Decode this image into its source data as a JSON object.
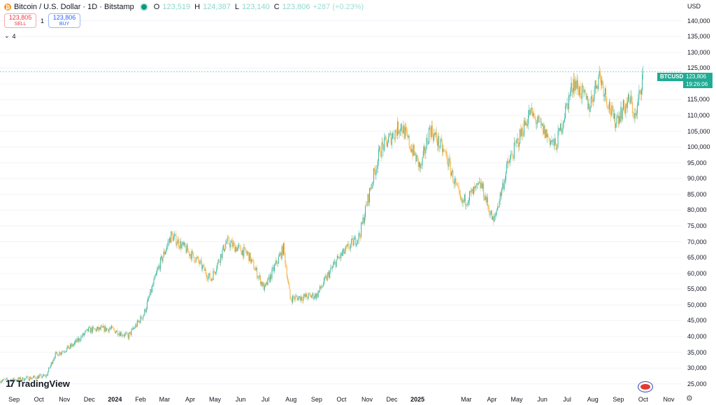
{
  "header": {
    "symbol_title": "Bitcoin / U.S. Dollar · 1D · Bitstamp",
    "open_label": "O",
    "open_value": "123,519",
    "high_label": "H",
    "high_value": "124,387",
    "low_label": "L",
    "low_value": "123,140",
    "close_label": "C",
    "close_value": "123,806",
    "change_value": "+287 (+0.23%)",
    "coin_icon": "bitcoin-icon",
    "status_icon": "market-open-dot-icon"
  },
  "trade": {
    "sell_price": "123,805",
    "sell_label": "SELL",
    "quantity": "1",
    "buy_price": "123,806",
    "buy_label": "BUY"
  },
  "indicators": {
    "collapse_icon": "chevron-down-icon",
    "count": "4"
  },
  "price_axis": {
    "currency": "USD",
    "ticks": [
      "140,000",
      "135,000",
      "130,000",
      "125,000",
      "120,000",
      "115,000",
      "110,000",
      "105,000",
      "100,000",
      "95,000",
      "90,000",
      "85,000",
      "80,000",
      "75,000",
      "70,000",
      "65,000",
      "60,000",
      "55,000",
      "50,000",
      "45,000",
      "40,000",
      "35,000",
      "30,000",
      "25,000"
    ],
    "symbol_tag": "BTCUSD",
    "last_price": "123,806",
    "countdown": "19:26:06"
  },
  "time_axis": {
    "labels": [
      "Sep",
      "Oct",
      "Nov",
      "Dec",
      "2024",
      "Feb",
      "Mar",
      "Apr",
      "May",
      "Jun",
      "Jul",
      "Aug",
      "Sep",
      "Oct",
      "Nov",
      "Dec",
      "2025",
      "Mar",
      "Apr",
      "May",
      "Jun",
      "Jul",
      "Aug",
      "Sep",
      "Oct",
      "Nov"
    ]
  },
  "branding": {
    "logo_text": "TradingView",
    "logo_icon": "tradingview-logo-icon"
  },
  "colors": {
    "up": "#22ab94",
    "down": "#f7a525",
    "accent": "#22ab94",
    "grid": "#f0f3fa"
  },
  "chart_data": {
    "type": "candlestick",
    "ylim": [
      22500,
      143000
    ],
    "y_ticks": [
      25000,
      30000,
      35000,
      40000,
      45000,
      50000,
      55000,
      60000,
      65000,
      70000,
      75000,
      80000,
      85000,
      90000,
      95000,
      100000,
      105000,
      110000,
      115000,
      120000,
      125000,
      130000,
      135000,
      140000
    ],
    "x_ticks": [
      "Sep",
      "Oct",
      "Nov",
      "Dec",
      "2024",
      "Feb",
      "Mar",
      "Apr",
      "May",
      "Jun",
      "Jul",
      "Aug",
      "Sep",
      "Oct",
      "Nov",
      "Dec",
      "2025",
      "Mar",
      "Apr",
      "May",
      "Jun",
      "Jul",
      "Aug",
      "Sep",
      "Oct",
      "Nov"
    ],
    "close_trend": [
      [
        "2023-08-20",
        26000
      ],
      [
        "2023-09-15",
        26500
      ],
      [
        "2023-10-15",
        27500
      ],
      [
        "2023-10-25",
        34000
      ],
      [
        "2023-11-15",
        37000
      ],
      [
        "2023-12-05",
        42000
      ],
      [
        "2023-12-31",
        42500
      ],
      [
        "2024-01-22",
        40000
      ],
      [
        "2024-02-10",
        47000
      ],
      [
        "2024-02-28",
        62000
      ],
      [
        "2024-03-14",
        72000
      ],
      [
        "2024-04-15",
        64000
      ],
      [
        "2024-05-01",
        58000
      ],
      [
        "2024-05-20",
        70000
      ],
      [
        "2024-06-15",
        66000
      ],
      [
        "2024-07-05",
        55000
      ],
      [
        "2024-07-28",
        68000
      ],
      [
        "2024-08-05",
        52000
      ],
      [
        "2024-09-06",
        53000
      ],
      [
        "2024-09-30",
        64000
      ],
      [
        "2024-10-28",
        72000
      ],
      [
        "2024-11-12",
        89000
      ],
      [
        "2024-11-22",
        99000
      ],
      [
        "2024-12-17",
        107000
      ],
      [
        "2025-01-10",
        93000
      ],
      [
        "2025-01-21",
        106000
      ],
      [
        "2025-02-10",
        97000
      ],
      [
        "2025-02-28",
        82000
      ],
      [
        "2025-03-24",
        88000
      ],
      [
        "2025-04-08",
        76000
      ],
      [
        "2025-04-25",
        94000
      ],
      [
        "2025-05-22",
        111000
      ],
      [
        "2025-06-22",
        100000
      ],
      [
        "2025-07-14",
        121000
      ],
      [
        "2025-08-02",
        113000
      ],
      [
        "2025-08-14",
        123000
      ],
      [
        "2025-09-01",
        108000
      ],
      [
        "2025-09-20",
        115000
      ],
      [
        "2025-09-27",
        109000
      ],
      [
        "2025-10-06",
        124000
      ]
    ],
    "last": {
      "date": "2025-10-06",
      "open": 123519,
      "high": 124387,
      "low": 123140,
      "close": 123806
    }
  }
}
